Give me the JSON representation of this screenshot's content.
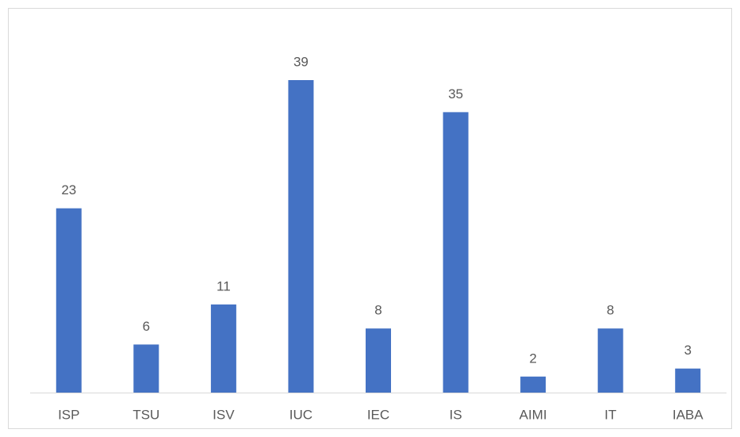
{
  "chart_data": {
    "type": "bar",
    "categories": [
      "ISP",
      "TSU",
      "ISV",
      "IUC",
      "IEC",
      "IS",
      "AIMI",
      "IT",
      "IABA"
    ],
    "values": [
      23,
      6,
      11,
      39,
      8,
      35,
      2,
      8,
      3
    ],
    "color": "#4472c4"
  }
}
